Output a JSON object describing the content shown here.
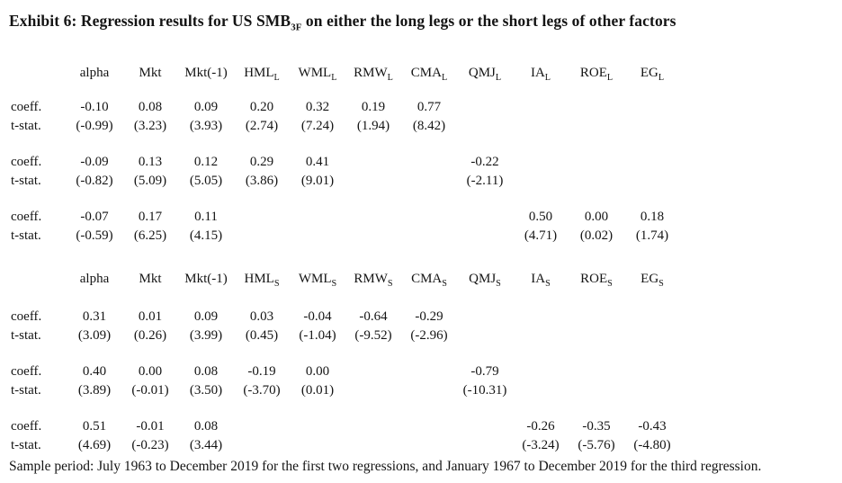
{
  "page": {
    "background": "#ffffff",
    "text_color": "#141414"
  },
  "title": {
    "text_before_sub": "Exhibit 6: Regression results for US SMB",
    "subscript": "3F",
    "text_after_sub": " on either the long legs or the short legs of other factors"
  },
  "row_labels": {
    "coeff": "coeff.",
    "tstat": "t-stat."
  },
  "tables": [
    {
      "name": "long-legs",
      "columns": [
        {
          "base": "alpha",
          "sub": ""
        },
        {
          "base": "Mkt",
          "sub": ""
        },
        {
          "base": "Mkt(-1)",
          "sub": ""
        },
        {
          "base": "HML",
          "sub": "L"
        },
        {
          "base": "WML",
          "sub": "L"
        },
        {
          "base": "RMW",
          "sub": "L"
        },
        {
          "base": "CMA",
          "sub": "L"
        },
        {
          "base": "QMJ",
          "sub": "L"
        },
        {
          "base": "IA",
          "sub": "L"
        },
        {
          "base": "ROE",
          "sub": "L"
        },
        {
          "base": "EG",
          "sub": "L"
        }
      ],
      "regressions": [
        {
          "coeff": [
            "-0.10",
            "0.08",
            "0.09",
            "0.20",
            "0.32",
            "0.19",
            "0.77",
            "",
            "",
            "",
            ""
          ],
          "tstat": [
            "(-0.99)",
            "(3.23)",
            "(3.93)",
            "(2.74)",
            "(7.24)",
            "(1.94)",
            "(8.42)",
            "",
            "",
            "",
            ""
          ]
        },
        {
          "coeff": [
            "-0.09",
            "0.13",
            "0.12",
            "0.29",
            "0.41",
            "",
            "",
            "-0.22",
            "",
            "",
            ""
          ],
          "tstat": [
            "(-0.82)",
            "(5.09)",
            "(5.05)",
            "(3.86)",
            "(9.01)",
            "",
            "",
            "(-2.11)",
            "",
            "",
            ""
          ]
        },
        {
          "coeff": [
            "-0.07",
            "0.17",
            "0.11",
            "",
            "",
            "",
            "",
            "",
            "0.50",
            "0.00",
            "0.18"
          ],
          "tstat": [
            "(-0.59)",
            "(6.25)",
            "(4.15)",
            "",
            "",
            "",
            "",
            "",
            "(4.71)",
            "(0.02)",
            "(1.74)"
          ]
        }
      ]
    },
    {
      "name": "short-legs",
      "columns": [
        {
          "base": "alpha",
          "sub": ""
        },
        {
          "base": "Mkt",
          "sub": ""
        },
        {
          "base": "Mkt(-1)",
          "sub": ""
        },
        {
          "base": "HML",
          "sub": "S"
        },
        {
          "base": "WML",
          "sub": "S"
        },
        {
          "base": "RMW",
          "sub": "S"
        },
        {
          "base": "CMA",
          "sub": "S"
        },
        {
          "base": "QMJ",
          "sub": "S"
        },
        {
          "base": "IA",
          "sub": "S"
        },
        {
          "base": "ROE",
          "sub": "S"
        },
        {
          "base": "EG",
          "sub": "S"
        }
      ],
      "regressions": [
        {
          "coeff": [
            "0.31",
            "0.01",
            "0.09",
            "0.03",
            "-0.04",
            "-0.64",
            "-0.29",
            "",
            "",
            "",
            ""
          ],
          "tstat": [
            "(3.09)",
            "(0.26)",
            "(3.99)",
            "(0.45)",
            "(-1.04)",
            "(-9.52)",
            "(-2.96)",
            "",
            "",
            "",
            ""
          ]
        },
        {
          "coeff": [
            "0.40",
            "0.00",
            "0.08",
            "-0.19",
            "0.00",
            "",
            "",
            "-0.79",
            "",
            "",
            ""
          ],
          "tstat": [
            "(3.89)",
            "(-0.01)",
            "(3.50)",
            "(-3.70)",
            "(0.01)",
            "",
            "",
            "(-10.31)",
            "",
            "",
            ""
          ]
        },
        {
          "coeff": [
            "0.51",
            "-0.01",
            "0.08",
            "",
            "",
            "",
            "",
            "",
            "-0.26",
            "-0.35",
            "-0.43"
          ],
          "tstat": [
            "(4.69)",
            "(-0.23)",
            "(3.44)",
            "",
            "",
            "",
            "",
            "",
            "(-3.24)",
            "(-5.76)",
            "(-4.80)"
          ]
        }
      ]
    }
  ],
  "footnote": "Sample period: July 1963 to December 2019 for the first two regressions, and January 1967 to December 2019 for the third regression."
}
